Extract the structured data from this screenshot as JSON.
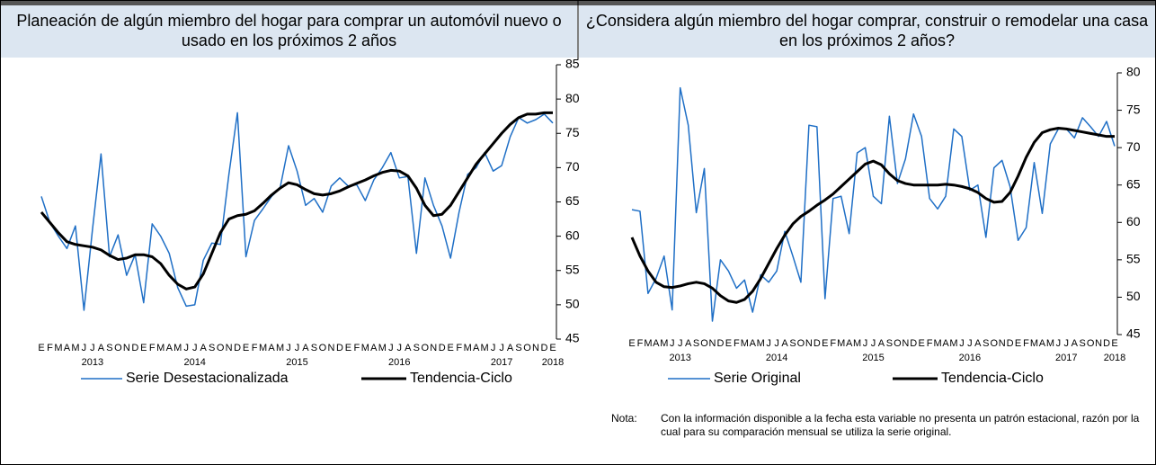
{
  "chart_data": [
    {
      "type": "line",
      "title": "Planeación de algún miembro del hogar para comprar un automóvil nuevo o usado en los próximos 2 años",
      "categories": [
        "E",
        "F",
        "M",
        "A",
        "M",
        "J",
        "J",
        "A",
        "S",
        "O",
        "N",
        "D",
        "E",
        "F",
        "M",
        "A",
        "M",
        "J",
        "J",
        "A",
        "S",
        "O",
        "N",
        "D",
        "E",
        "F",
        "M",
        "A",
        "M",
        "J",
        "J",
        "A",
        "S",
        "O",
        "N",
        "D",
        "E",
        "F",
        "M",
        "A",
        "M",
        "J",
        "J",
        "A",
        "S",
        "O",
        "N",
        "D",
        "E",
        "F",
        "M",
        "A",
        "M",
        "J",
        "J",
        "A",
        "S",
        "O",
        "N",
        "D",
        "E"
      ],
      "year_labels": [
        "2013",
        "2014",
        "2015",
        "2016",
        "2017",
        "2018"
      ],
      "ylim": [
        45,
        85
      ],
      "yticks": [
        45,
        50,
        55,
        60,
        65,
        70,
        75,
        80,
        85
      ],
      "series": [
        {
          "name": "Serie Desestacionalizada",
          "color": "#1f6fc6",
          "values": [
            65.8,
            62,
            60,
            58.2,
            61.5,
            49.2,
            61,
            72,
            57,
            60.2,
            54.3,
            57.3,
            50.3,
            61.8,
            60,
            57.5,
            52.5,
            49.8,
            50,
            56.5,
            59,
            58.8,
            69,
            78,
            57,
            62.3,
            64,
            65.8,
            67,
            73.2,
            69.5,
            64.5,
            65.5,
            63.5,
            67.3,
            68.5,
            67.3,
            67.5,
            65.2,
            68.2,
            70,
            72.2,
            68.5,
            68.7,
            57.5,
            68.5,
            64.5,
            61.5,
            56.8,
            63.5,
            69,
            70,
            72.2,
            69.5,
            70.3,
            74.5,
            77.3,
            76.5,
            77,
            77.8,
            76.5
          ]
        },
        {
          "name": "Tendencia-Ciclo",
          "color": "#000000",
          "values": [
            63.5,
            62,
            60.5,
            59.2,
            58.8,
            58.6,
            58.4,
            58,
            57.2,
            56.6,
            56.8,
            57.3,
            57.3,
            57,
            56,
            54.3,
            53,
            52.3,
            52.6,
            54.5,
            57.5,
            60.5,
            62.5,
            63,
            63.2,
            63.7,
            64.8,
            66,
            67,
            67.8,
            67.5,
            66.8,
            66.2,
            66,
            66.2,
            66.6,
            67.2,
            67.7,
            68.2,
            68.8,
            69.3,
            69.6,
            69.5,
            68.8,
            67,
            64.5,
            63,
            63.2,
            64.5,
            66.5,
            68.5,
            70.5,
            72,
            73.5,
            75,
            76.3,
            77.3,
            77.8,
            77.8,
            78,
            78
          ]
        }
      ]
    },
    {
      "type": "line",
      "title": "¿Considera algún miembro del hogar comprar, construir o remodelar una casa en los próximos 2 años?",
      "categories": [
        "E",
        "F",
        "M",
        "A",
        "M",
        "J",
        "J",
        "A",
        "S",
        "O",
        "N",
        "D",
        "E",
        "F",
        "M",
        "A",
        "M",
        "J",
        "J",
        "A",
        "S",
        "O",
        "N",
        "D",
        "E",
        "F",
        "M",
        "A",
        "M",
        "J",
        "J",
        "A",
        "S",
        "O",
        "N",
        "D",
        "E",
        "F",
        "M",
        "A",
        "M",
        "J",
        "J",
        "A",
        "S",
        "O",
        "N",
        "D",
        "E",
        "F",
        "M",
        "A",
        "M",
        "J",
        "J",
        "A",
        "S",
        "O",
        "N",
        "D",
        "E"
      ],
      "year_labels": [
        "2013",
        "2014",
        "2015",
        "2016",
        "2017",
        "2018"
      ],
      "ylim": [
        45,
        80
      ],
      "yticks": [
        45,
        50,
        55,
        60,
        65,
        70,
        75,
        80
      ],
      "series": [
        {
          "name": "Serie Original",
          "color": "#1f6fc6",
          "values": [
            61.7,
            61.5,
            50.5,
            52.5,
            55.5,
            48.3,
            78,
            73,
            61.3,
            67.2,
            46.8,
            55,
            53.5,
            51.2,
            52.3,
            48,
            53,
            52,
            53.5,
            58.8,
            55.5,
            52,
            73,
            72.8,
            49.8,
            63.2,
            63.5,
            58.5,
            69.3,
            70,
            63.5,
            62.5,
            74.2,
            65.2,
            68.5,
            74.5,
            71.5,
            63.2,
            61.8,
            63.5,
            72.5,
            71.5,
            64.3,
            65,
            58,
            67.3,
            68.3,
            64.8,
            57.6,
            59.3,
            68,
            61.2,
            70.5,
            72.5,
            72.5,
            71.3,
            74,
            72.8,
            71.5,
            73.5,
            70.2
          ]
        },
        {
          "name": "Tendencia-Ciclo",
          "color": "#000000",
          "values": [
            58,
            55.5,
            53.5,
            52,
            51.4,
            51.3,
            51.5,
            51.8,
            52,
            51.8,
            51.2,
            50.2,
            49.5,
            49.3,
            49.7,
            50.8,
            52.5,
            54.5,
            56.5,
            58.3,
            59.8,
            60.8,
            61.5,
            62.3,
            63,
            63.8,
            64.8,
            65.8,
            66.8,
            67.8,
            68.2,
            67.7,
            66.5,
            65.6,
            65.2,
            65,
            65,
            65,
            65,
            65.1,
            65,
            64.8,
            64.5,
            64,
            63.2,
            62.7,
            62.8,
            64,
            66.2,
            68.7,
            70.7,
            72,
            72.4,
            72.6,
            72.5,
            72.3,
            72.1,
            71.9,
            71.7,
            71.5,
            71.5
          ]
        }
      ],
      "note_label": "Nota:",
      "note": "Con la información disponible a la fecha esta variable no presenta un patrón estacional, razón por la cual para su comparación mensual se utiliza la serie original."
    }
  ]
}
